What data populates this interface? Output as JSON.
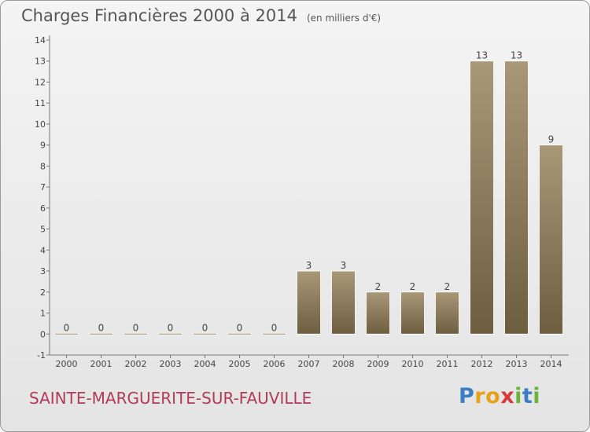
{
  "header": {
    "title": "Charges Financières 2000 à 2014",
    "unit": "(en milliers d'€)"
  },
  "footer": {
    "commune": "SAINTE-MARGUERITE-SUR-FAUVILLE",
    "logo_letters": [
      "P",
      "r",
      "o",
      "x",
      "i",
      "t",
      "i"
    ],
    "logo_colors": [
      "#3a7fc4",
      "#e8a21a",
      "#e8a21a",
      "#d83a3a",
      "#6bb43a",
      "#3a7fc4",
      "#6bb43a"
    ]
  },
  "chart_data": {
    "type": "bar",
    "categories": [
      "2000",
      "2001",
      "2002",
      "2003",
      "2004",
      "2005",
      "2006",
      "2007",
      "2008",
      "2009",
      "2010",
      "2011",
      "2012",
      "2013",
      "2014"
    ],
    "values": [
      0,
      0,
      0,
      0,
      0,
      0,
      0,
      3,
      3,
      2,
      2,
      2,
      13,
      13,
      9
    ],
    "data_labels": [
      "0",
      "0",
      "0",
      "0",
      "0",
      "0",
      "0",
      "3",
      "3",
      "2",
      "2",
      "2",
      "13",
      "13",
      "9"
    ],
    "ylim": [
      -1,
      14
    ],
    "yticks": [
      -1,
      0,
      1,
      2,
      3,
      4,
      5,
      6,
      7,
      8,
      9,
      10,
      11,
      12,
      13,
      14
    ],
    "ytick_labels": [
      "-1",
      "0",
      "1",
      "2",
      "3",
      "4",
      "5",
      "6",
      "7",
      "8",
      "9",
      "10",
      "11",
      "12",
      "13",
      "14"
    ],
    "grid": false,
    "bar_color_light": "#a89878",
    "bar_color_dark": "#6e5e40"
  }
}
